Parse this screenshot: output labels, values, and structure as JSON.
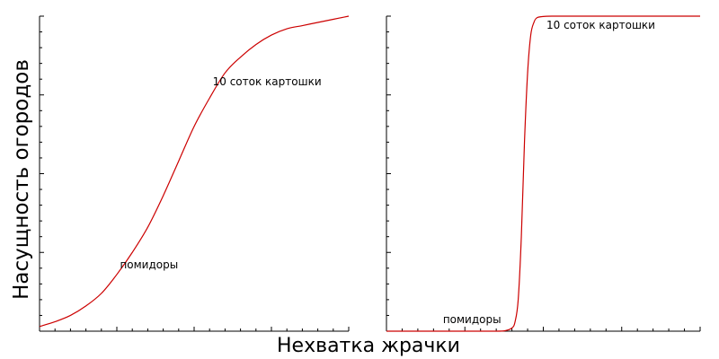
{
  "colors": {
    "curve": "#cc0000",
    "axis": "#000000",
    "background": "#ffffff"
  },
  "labels": {
    "ylabel": "Насущность огородов",
    "xlabel": "Нехватка жрачки"
  },
  "chart_data": [
    {
      "type": "line",
      "title": "",
      "grid": false,
      "xlabel": "Нехватка жрачки",
      "ylabel": "Насущность огородов",
      "xlim": [
        0,
        1
      ],
      "ylim": [
        0,
        1
      ],
      "series": [
        {
          "x": [
            0.0,
            0.05,
            0.1,
            0.15,
            0.2,
            0.25,
            0.3,
            0.35,
            0.4,
            0.45,
            0.5,
            0.55,
            0.6,
            0.65,
            0.7,
            0.75,
            0.8,
            0.85,
            0.9,
            0.95,
            1.0
          ],
          "y": [
            0.015,
            0.03,
            0.05,
            0.08,
            0.12,
            0.18,
            0.25,
            0.33,
            0.43,
            0.54,
            0.65,
            0.74,
            0.82,
            0.87,
            0.91,
            0.94,
            0.96,
            0.97,
            0.98,
            0.99,
            1.0
          ]
        }
      ],
      "annotations": [
        {
          "text": "помидоры",
          "x": 0.26,
          "y": 0.2
        },
        {
          "text": "10 соток картошки",
          "x": 0.56,
          "y": 0.78
        }
      ]
    },
    {
      "type": "line",
      "title": "",
      "grid": false,
      "xlim": [
        0,
        1
      ],
      "ylim": [
        0,
        1
      ],
      "series": [
        {
          "x": [
            0.0,
            0.2,
            0.35,
            0.38,
            0.4,
            0.41,
            0.42,
            0.43,
            0.44,
            0.45,
            0.46,
            0.47,
            0.48,
            0.5,
            0.53,
            0.6,
            0.8,
            1.0
          ],
          "y": [
            0.0,
            0.0,
            0.0,
            0.002,
            0.01,
            0.03,
            0.1,
            0.3,
            0.6,
            0.82,
            0.94,
            0.98,
            0.995,
            0.999,
            1.0,
            1.0,
            1.0,
            1.0
          ]
        }
      ],
      "annotations": [
        {
          "text": "помидоры",
          "x": 0.18,
          "y": 0.025
        },
        {
          "text": "10 соток картошки",
          "x": 0.51,
          "y": 0.96
        }
      ]
    }
  ]
}
